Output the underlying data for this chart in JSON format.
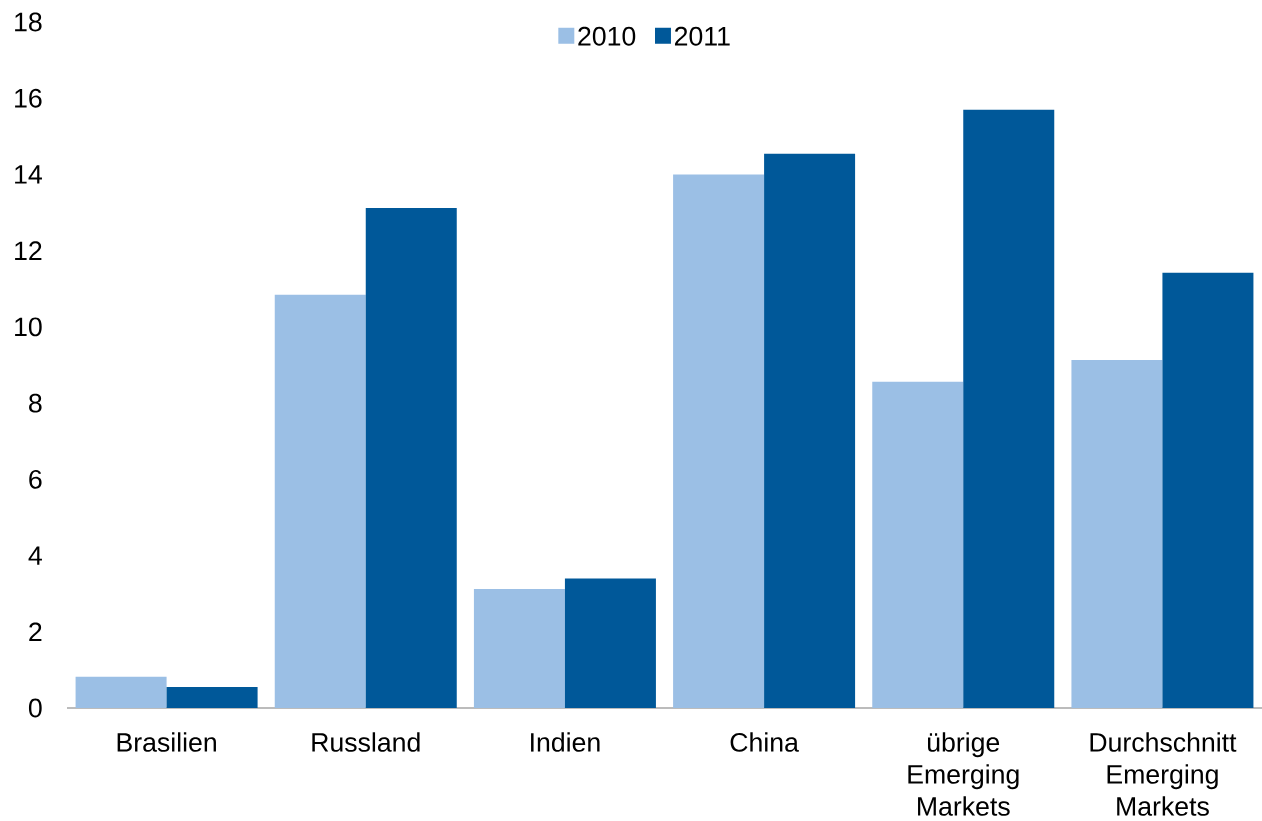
{
  "chart_data": {
    "type": "bar",
    "categories": [
      "Brasilien",
      "Russland",
      "Indien",
      "China",
      "übrige Emerging Markets",
      "Durchschnitt Emerging Markets"
    ],
    "series": [
      {
        "name": "2010",
        "color": "#9bbfe5",
        "values": [
          0.82,
          10.84,
          3.12,
          14.0,
          8.56,
          9.13
        ]
      },
      {
        "name": "2011",
        "color": "#005899",
        "values": [
          0.55,
          13.12,
          3.4,
          14.54,
          15.7,
          11.42
        ]
      }
    ],
    "ylim": [
      0,
      18
    ],
    "yticks": [
      0,
      2,
      4,
      6,
      8,
      10,
      12,
      14,
      16,
      18
    ],
    "legend": "top"
  }
}
